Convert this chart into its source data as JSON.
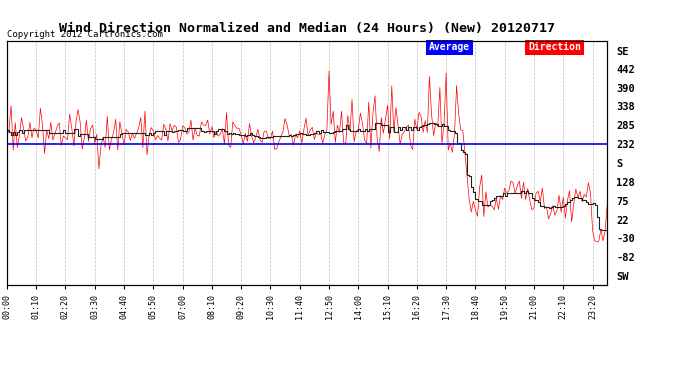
{
  "title": "Wind Direction Normalized and Median (24 Hours) (New) 20120717",
  "copyright": "Copyright 2012 Cartronics.com",
  "legend_avg_label": "Average",
  "legend_dir_label": "Direction",
  "avg_color": "#0000ff",
  "dir_color": "#ff0000",
  "median_color": "#222222",
  "avg_value": 232,
  "background_color": "#ffffff",
  "plot_bg_color": "#ffffff",
  "grid_color": "#bbbbbb",
  "right_yticks": [
    494,
    442,
    390,
    338,
    285,
    232,
    180,
    128,
    75,
    22,
    -30,
    -82,
    -134
  ],
  "right_yticklabels": [
    "SE",
    "442",
    "390",
    "338",
    "285",
    "232",
    "S",
    "128",
    "75",
    "22",
    "-30",
    "-82",
    "SW"
  ],
  "ylim": [
    -160,
    520
  ],
  "num_points": 288,
  "seed": 42,
  "tick_every": 14
}
